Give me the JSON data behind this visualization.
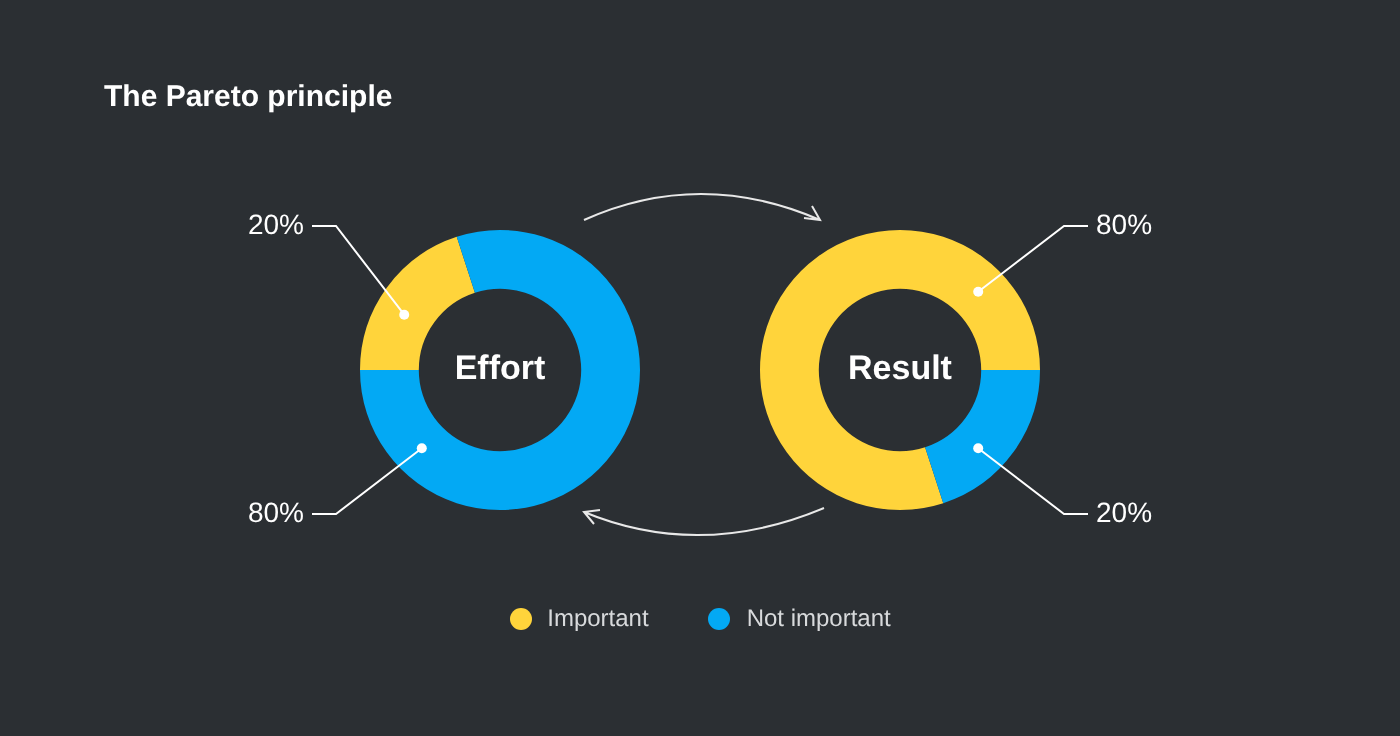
{
  "chart_data": [
    {
      "type": "other",
      "title": "The Pareto principle"
    },
    {
      "type": "donut",
      "title": "Effort",
      "categories": [
        "Important",
        "Not important"
      ],
      "values": [
        20,
        80
      ],
      "colors": [
        "#ffd43b",
        "#03a9f4"
      ],
      "value_labels": [
        "20%",
        "80%"
      ],
      "legend": "bottom"
    },
    {
      "type": "donut",
      "title": "Result",
      "categories": [
        null,
        null
      ],
      "values": [
        80,
        20
      ],
      "colors": [
        "#ffd43b",
        "#03a9f4"
      ],
      "value_labels": [
        "80%",
        "20%"
      ]
    }
  ]
}
